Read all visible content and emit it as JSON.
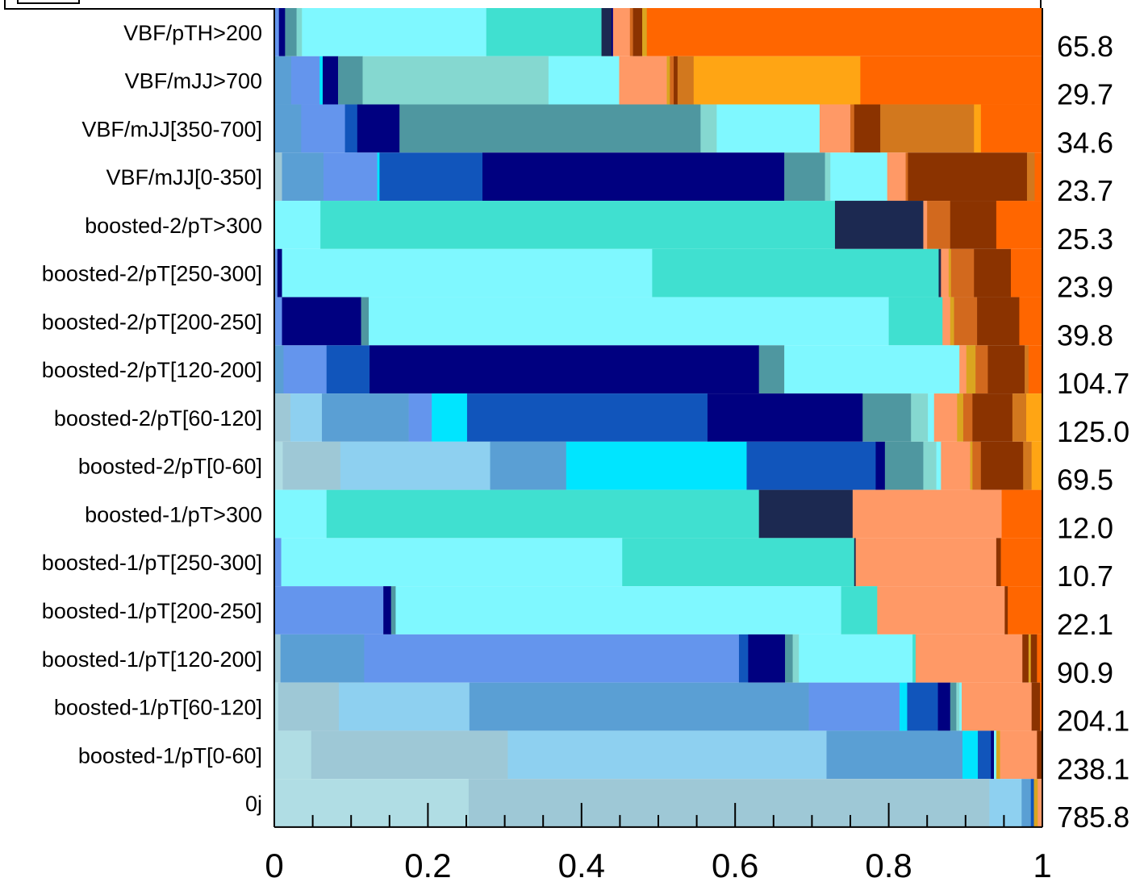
{
  "chart_data": {
    "type": "bar",
    "orientation": "horizontal",
    "stacked": true,
    "title": "",
    "xlabel": "",
    "ylabel": "",
    "xlim": [
      0,
      1
    ],
    "x_ticks": [
      "0",
      "0.2",
      "0.4",
      "0.6",
      "0.8",
      "1"
    ],
    "legend": "top (partially cut off)",
    "categories": [
      {
        "label": "VBF/pTH>200",
        "total": "65.8",
        "segments": [
          [
            0.006,
            "#6495ED"
          ],
          [
            0.008,
            "#000080"
          ],
          [
            0.015,
            "#4F97A0"
          ],
          [
            0.007,
            "#7FD8D0"
          ],
          [
            0.24,
            "#7FF8FF"
          ],
          [
            0.15,
            "#40E0D0"
          ],
          [
            0.013,
            "#1C2951"
          ],
          [
            0.002,
            "#000080"
          ],
          [
            0.022,
            "#FF9966"
          ],
          [
            0.004,
            "#D2691E"
          ],
          [
            0.012,
            "#8B3300"
          ],
          [
            0.006,
            "#DAA520"
          ],
          [
            0.515,
            "#FF6600"
          ]
        ]
      },
      {
        "label": "VBF/mJJ>700",
        "total": "29.7",
        "segments": [
          [
            0.022,
            "#5A9FD4"
          ],
          [
            0.037,
            "#6495ED"
          ],
          [
            0.004,
            "#00E5FF"
          ],
          [
            0.02,
            "#000080"
          ],
          [
            0.032,
            "#4F97A0"
          ],
          [
            0.242,
            "#85D8D0"
          ],
          [
            0.092,
            "#7FF8FF"
          ],
          [
            0.062,
            "#FF9966"
          ],
          [
            0.004,
            "#DAA520"
          ],
          [
            0.005,
            "#D2691E"
          ],
          [
            0.005,
            "#8B3300"
          ],
          [
            0.021,
            "#D2781E"
          ],
          [
            0.217,
            "#FFA514"
          ],
          [
            0.237,
            "#FF6600"
          ]
        ]
      },
      {
        "label": "VBF/mJJ[350-700]",
        "total": "34.6",
        "segments": [
          [
            0.035,
            "#5A9FD4"
          ],
          [
            0.057,
            "#6495ED"
          ],
          [
            0.016,
            "#1155BB"
          ],
          [
            0.055,
            "#000080"
          ],
          [
            0.392,
            "#4F97A0"
          ],
          [
            0.021,
            "#85D8D0"
          ],
          [
            0.134,
            "#7FF8FF"
          ],
          [
            0.04,
            "#FF9966"
          ],
          [
            0.005,
            "#D2691E"
          ],
          [
            0.034,
            "#8B3300"
          ],
          [
            0.122,
            "#D2781E"
          ],
          [
            0.009,
            "#FFA514"
          ],
          [
            0.08,
            "#FF6600"
          ]
        ]
      },
      {
        "label": "VBF/mJJ[0-350]",
        "total": "23.7",
        "segments": [
          [
            0.01,
            "#9EC8D6"
          ],
          [
            0.054,
            "#5A9FD4"
          ],
          [
            0.07,
            "#6495ED"
          ],
          [
            0.003,
            "#00E5FF"
          ],
          [
            0.134,
            "#1155BB"
          ],
          [
            0.393,
            "#000080"
          ],
          [
            0.053,
            "#4F97A0"
          ],
          [
            0.007,
            "#85D8D0"
          ],
          [
            0.074,
            "#7FF8FF"
          ],
          [
            0.024,
            "#FF9966"
          ],
          [
            0.003,
            "#D2691E"
          ],
          [
            0.155,
            "#8B3300"
          ],
          [
            0.01,
            "#D2781E"
          ],
          [
            0.01,
            "#FF6600"
          ]
        ]
      },
      {
        "label": "boosted-2/pT>300",
        "total": "25.3",
        "segments": [
          [
            0.06,
            "#7FF8FF"
          ],
          [
            0.67,
            "#40E0D0"
          ],
          [
            0.115,
            "#1C2951"
          ],
          [
            0.005,
            "#FF9966"
          ],
          [
            0.03,
            "#D2691E"
          ],
          [
            0.06,
            "#8B3300"
          ],
          [
            0.06,
            "#FF6600"
          ]
        ]
      },
      {
        "label": "boosted-2/pT[250-300]",
        "total": "23.9",
        "segments": [
          [
            0.004,
            "#6495ED"
          ],
          [
            0.006,
            "#000080"
          ],
          [
            0.482,
            "#7FF8FF"
          ],
          [
            0.373,
            "#40E0D0"
          ],
          [
            0.003,
            "#1C2951"
          ],
          [
            0.01,
            "#FF9966"
          ],
          [
            0.003,
            "#DAA520"
          ],
          [
            0.03,
            "#D2691E"
          ],
          [
            0.048,
            "#8B3300"
          ],
          [
            0.041,
            "#FF6600"
          ]
        ]
      },
      {
        "label": "boosted-2/pT[200-250]",
        "total": "39.8",
        "segments": [
          [
            0.01,
            "#6495ED"
          ],
          [
            0.103,
            "#000080"
          ],
          [
            0.01,
            "#4F97A0"
          ],
          [
            0.677,
            "#7FF8FF"
          ],
          [
            0.07,
            "#40E0D0"
          ],
          [
            0.01,
            "#FF9966"
          ],
          [
            0.005,
            "#DAA520"
          ],
          [
            0.03,
            "#D2691E"
          ],
          [
            0.055,
            "#8B3300"
          ],
          [
            0.03,
            "#FF6600"
          ]
        ]
      },
      {
        "label": "boosted-2/pT[120-200]",
        "total": "104.7",
        "segments": [
          [
            0.012,
            "#5A9FD4"
          ],
          [
            0.056,
            "#6495ED"
          ],
          [
            0.056,
            "#1155BB"
          ],
          [
            0.507,
            "#000080"
          ],
          [
            0.033,
            "#4F97A0"
          ],
          [
            0.228,
            "#7FF8FF"
          ],
          [
            0.009,
            "#FF9966"
          ],
          [
            0.012,
            "#DAA520"
          ],
          [
            0.016,
            "#D2691E"
          ],
          [
            0.048,
            "#8B3300"
          ],
          [
            0.005,
            "#D2781E"
          ],
          [
            0.018,
            "#FF6600"
          ]
        ]
      },
      {
        "label": "boosted-2/pT[60-120]",
        "total": "125.0",
        "segments": [
          [
            0.021,
            "#9EC8D6"
          ],
          [
            0.041,
            "#8ED0F0"
          ],
          [
            0.113,
            "#5A9FD4"
          ],
          [
            0.03,
            "#6495ED"
          ],
          [
            0.046,
            "#00E5FF"
          ],
          [
            0.313,
            "#1155BB"
          ],
          [
            0.202,
            "#000080"
          ],
          [
            0.063,
            "#4F97A0"
          ],
          [
            0.022,
            "#85D8D0"
          ],
          [
            0.008,
            "#7FF8FF"
          ],
          [
            0.03,
            "#FF9966"
          ],
          [
            0.008,
            "#DAA520"
          ],
          [
            0.012,
            "#D2691E"
          ],
          [
            0.052,
            "#8B3300"
          ],
          [
            0.018,
            "#D2781E"
          ],
          [
            0.021,
            "#FFA514"
          ]
        ]
      },
      {
        "label": "boosted-2/pT[0-60]",
        "total": "69.5",
        "segments": [
          [
            0.011,
            "#B0DDE4"
          ],
          [
            0.075,
            "#9EC8D6"
          ],
          [
            0.195,
            "#8ED0F0"
          ],
          [
            0.099,
            "#5A9FD4"
          ],
          [
            0.235,
            "#00E5FF"
          ],
          [
            0.168,
            "#1155BB"
          ],
          [
            0.012,
            "#000080"
          ],
          [
            0.05,
            "#4F97A0"
          ],
          [
            0.017,
            "#85D8D0"
          ],
          [
            0.006,
            "#7FF8FF"
          ],
          [
            0.038,
            "#FF9966"
          ],
          [
            0.003,
            "#DAA520"
          ],
          [
            0.011,
            "#D2691E"
          ],
          [
            0.055,
            "#8B3300"
          ],
          [
            0.011,
            "#D2781E"
          ],
          [
            0.014,
            "#FFA514"
          ]
        ]
      },
      {
        "label": "boosted-1/pT>300",
        "total": "12.0",
        "segments": [
          [
            0.068,
            "#7FF8FF"
          ],
          [
            0.563,
            "#40E0D0"
          ],
          [
            0.122,
            "#1C2951"
          ],
          [
            0.194,
            "#FF9966"
          ],
          [
            0.053,
            "#FF6600"
          ]
        ]
      },
      {
        "label": "boosted-1/pT[250-300]",
        "total": "10.7",
        "segments": [
          [
            0.009,
            "#6495ED"
          ],
          [
            0.444,
            "#7FF8FF"
          ],
          [
            0.302,
            "#40E0D0"
          ],
          [
            0.002,
            "#1C2951"
          ],
          [
            0.183,
            "#FF9966"
          ],
          [
            0.006,
            "#8B3300"
          ],
          [
            0.054,
            "#FF6600"
          ]
        ]
      },
      {
        "label": "boosted-1/pT[200-250]",
        "total": "22.1",
        "segments": [
          [
            0.142,
            "#6495ED"
          ],
          [
            0.01,
            "#000080"
          ],
          [
            0.006,
            "#4F97A0"
          ],
          [
            0.58,
            "#7FF8FF"
          ],
          [
            0.047,
            "#40E0D0"
          ],
          [
            0.166,
            "#FF9966"
          ],
          [
            0.004,
            "#8B3300"
          ],
          [
            0.045,
            "#FF6600"
          ]
        ]
      },
      {
        "label": "boosted-1/pT[120-200]",
        "total": "90.9",
        "segments": [
          [
            0.008,
            "#9EC8D6"
          ],
          [
            0.109,
            "#5A9FD4"
          ],
          [
            0.488,
            "#6495ED"
          ],
          [
            0.012,
            "#1155BB"
          ],
          [
            0.048,
            "#000080"
          ],
          [
            0.01,
            "#4F97A0"
          ],
          [
            0.008,
            "#85D8D0"
          ],
          [
            0.148,
            "#7FF8FF"
          ],
          [
            0.004,
            "#40E0D0"
          ],
          [
            0.139,
            "#FF9966"
          ],
          [
            0.008,
            "#8B3300"
          ],
          [
            0.003,
            "#DAA520"
          ],
          [
            0.008,
            "#8B3300"
          ],
          [
            0.007,
            "#FF6600"
          ]
        ]
      },
      {
        "label": "boosted-1/pT[60-120]",
        "total": "204.1",
        "segments": [
          [
            0.005,
            "#B0DDE4"
          ],
          [
            0.079,
            "#9EC8D6"
          ],
          [
            0.17,
            "#8ED0F0"
          ],
          [
            0.442,
            "#5A9FD4"
          ],
          [
            0.118,
            "#6495ED"
          ],
          [
            0.01,
            "#00E5FF"
          ],
          [
            0.04,
            "#1155BB"
          ],
          [
            0.016,
            "#000080"
          ],
          [
            0.008,
            "#4F97A0"
          ],
          [
            0.004,
            "#85D8D0"
          ],
          [
            0.003,
            "#7FF8FF"
          ],
          [
            0.091,
            "#FF9966"
          ],
          [
            0.011,
            "#8B3300"
          ],
          [
            0.003,
            "#FF6600"
          ]
        ]
      },
      {
        "label": "boosted-1/pT[0-60]",
        "total": "238.1",
        "segments": [
          [
            0.048,
            "#B0DDE4"
          ],
          [
            0.256,
            "#9EC8D6"
          ],
          [
            0.415,
            "#8ED0F0"
          ],
          [
            0.177,
            "#5A9FD4"
          ],
          [
            0.02,
            "#00E5FF"
          ],
          [
            0.017,
            "#1155BB"
          ],
          [
            0.004,
            "#000080"
          ],
          [
            0.003,
            "#7FF8FF"
          ],
          [
            0.005,
            "#DAA520"
          ],
          [
            0.048,
            "#FF9966"
          ],
          [
            0.007,
            "#8B3300"
          ]
        ]
      },
      {
        "label": "0j",
        "total": "785.8",
        "segments": [
          [
            0.253,
            "#B0DDE4"
          ],
          [
            0.678,
            "#9EC8D6"
          ],
          [
            0.042,
            "#8ED0F0"
          ],
          [
            0.012,
            "#5A9FD4"
          ],
          [
            0.004,
            "#1155BB"
          ],
          [
            0.005,
            "#DAA520"
          ],
          [
            0.006,
            "#FF9966"
          ]
        ]
      }
    ]
  }
}
